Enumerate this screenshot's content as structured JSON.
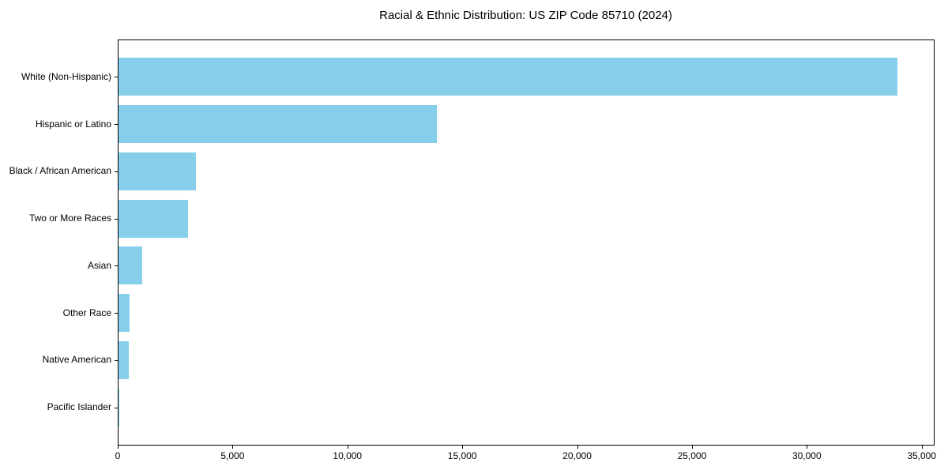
{
  "title": "Racial & Ethnic Distribution: US ZIP Code 85710 (2024)",
  "colors": {
    "bar": "#87CEEB",
    "axis": "#000000",
    "background": "#ffffff",
    "text": "#000000"
  },
  "chart_data": {
    "type": "bar",
    "orientation": "horizontal",
    "title": "Racial & Ethnic Distribution: US ZIP Code 85710 (2024)",
    "xlabel": "",
    "ylabel": "",
    "categories": [
      "White (Non-Hispanic)",
      "Hispanic or Latino",
      "Black / African American",
      "Two or More Races",
      "Asian",
      "Other Race",
      "Native American",
      "Pacific Islander"
    ],
    "values": [
      33900,
      13850,
      3360,
      3040,
      1040,
      490,
      435,
      30
    ],
    "xlim": [
      0,
      35500
    ],
    "xticks": [
      0,
      5000,
      10000,
      15000,
      20000,
      25000,
      30000,
      35000
    ],
    "xtick_labels": [
      "0",
      "5,000",
      "10,000",
      "15,000",
      "20,000",
      "25,000",
      "30,000",
      "35,000"
    ],
    "grid": false,
    "legend": "none",
    "bar_color": "#87CEEB"
  }
}
